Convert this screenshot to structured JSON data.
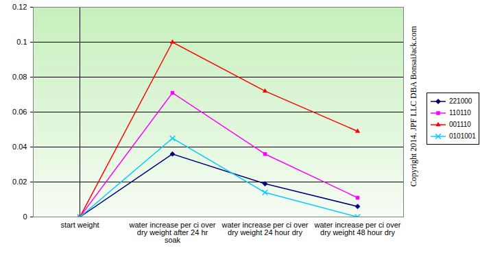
{
  "chart_data": {
    "type": "line",
    "categories": [
      "start weight",
      "water increase per ci over dry weight after 24 hr soak",
      "water increase per ci over dry weight 24 hour dry",
      "water increase per ci over dry weight 48 hour dry"
    ],
    "series": [
      {
        "name": "221000",
        "color": "#000080",
        "marker": "diamond",
        "values": [
          0,
          0.036,
          0.019,
          0.006
        ]
      },
      {
        "name": "110110",
        "color": "#ff00ff",
        "marker": "square",
        "values": [
          0,
          0.071,
          0.036,
          0.011
        ]
      },
      {
        "name": "001110",
        "color": "#ff0000",
        "marker": "triangle",
        "values": [
          0,
          0.1,
          0.072,
          0.049
        ]
      },
      {
        "name": "0101001",
        "color": "#00ccff",
        "marker": "x",
        "values": [
          0,
          0.045,
          0.014,
          0
        ]
      }
    ],
    "ylim": [
      0,
      0.12
    ],
    "yticks": [
      0,
      0.02,
      0.04,
      0.06,
      0.08,
      0.1,
      0.12
    ],
    "grid": true,
    "legend": "right",
    "annotations": [
      "Copyright 2014. JPF LLC DBA BonsaiJack.com"
    ]
  }
}
